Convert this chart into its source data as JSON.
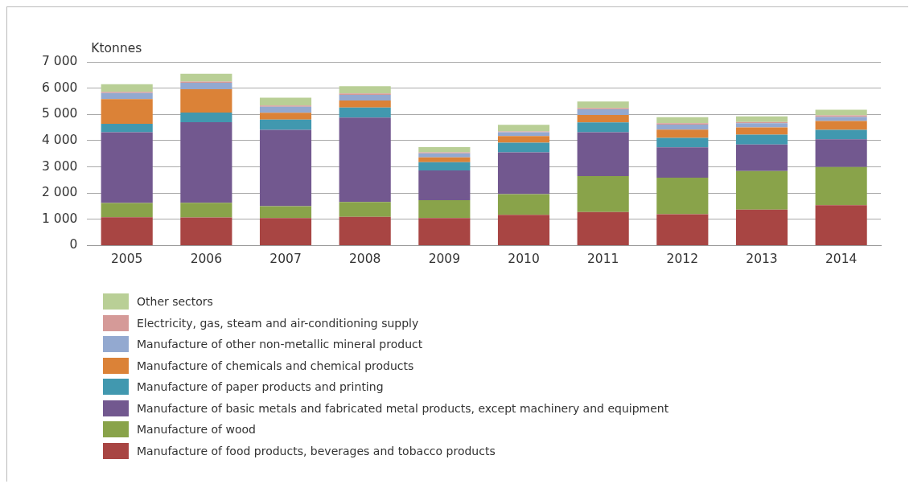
{
  "chart_data": {
    "type": "bar",
    "stacked": true,
    "ylabel": "Ktonnes",
    "categories": [
      "2005",
      "2006",
      "2007",
      "2008",
      "2009",
      "2010",
      "2011",
      "2012",
      "2013",
      "2014"
    ],
    "series": [
      {
        "name": "Manufacture of food products, beverages and tobacco products",
        "color": "#a84543",
        "values": [
          1080,
          1070,
          1050,
          1090,
          1050,
          1170,
          1280,
          1190,
          1370,
          1540
        ]
      },
      {
        "name": "Manufacture of wood",
        "color": "#89a34a",
        "values": [
          540,
          560,
          450,
          570,
          680,
          790,
          1370,
          1400,
          1470,
          1450
        ]
      },
      {
        "name": "Manufacture of basic metals and fabricated metal products, except machinery and equipment",
        "color": "#72588f",
        "values": [
          2700,
          3070,
          2910,
          3220,
          1130,
          1590,
          1670,
          1150,
          1010,
          1060
        ]
      },
      {
        "name": "Manufacture of paper products and printing",
        "color": "#4198af",
        "values": [
          320,
          370,
          390,
          380,
          320,
          370,
          370,
          360,
          380,
          360
        ]
      },
      {
        "name": "Manufacture of chemicals and chemical products",
        "color": "#db8237",
        "values": [
          940,
          890,
          260,
          270,
          180,
          250,
          290,
          320,
          270,
          340
        ]
      },
      {
        "name": "Manufacture of other non-metallic mineral product",
        "color": "#93a9d0",
        "values": [
          230,
          240,
          230,
          210,
          150,
          150,
          210,
          190,
          160,
          150
        ]
      },
      {
        "name": "Electricity, gas, steam and air-conditioning supply",
        "color": "#d59a98",
        "values": [
          50,
          50,
          50,
          60,
          40,
          30,
          50,
          50,
          50,
          60
        ]
      },
      {
        "name": "Other sectors",
        "color": "#b9cf96",
        "values": [
          290,
          300,
          300,
          270,
          200,
          250,
          250,
          230,
          210,
          220
        ]
      }
    ],
    "ylim": [
      0,
      7000
    ],
    "yticks": [
      {
        "value": 0,
        "label": "0"
      },
      {
        "value": 1000,
        "label": "1 000"
      },
      {
        "value": 2000,
        "label": "2 000"
      },
      {
        "value": 3000,
        "label": "3 000"
      },
      {
        "value": 4000,
        "label": "4 000"
      },
      {
        "value": 5000,
        "label": "5 000"
      },
      {
        "value": 6000,
        "label": "6 000"
      },
      {
        "value": 7000,
        "label": "7 000"
      }
    ],
    "grid": "y",
    "legend": "bottom"
  }
}
